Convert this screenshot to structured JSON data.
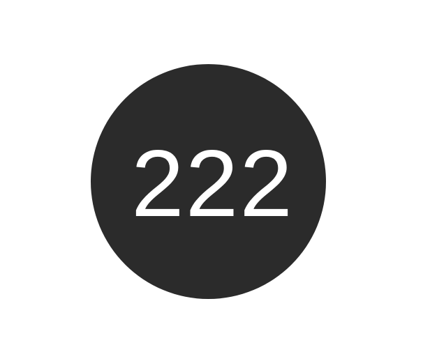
{
  "badge": {
    "number": "222",
    "background_color": "#2b2b2b",
    "text_color": "#ffffff"
  },
  "page": {
    "background_color": "#ffffff"
  }
}
